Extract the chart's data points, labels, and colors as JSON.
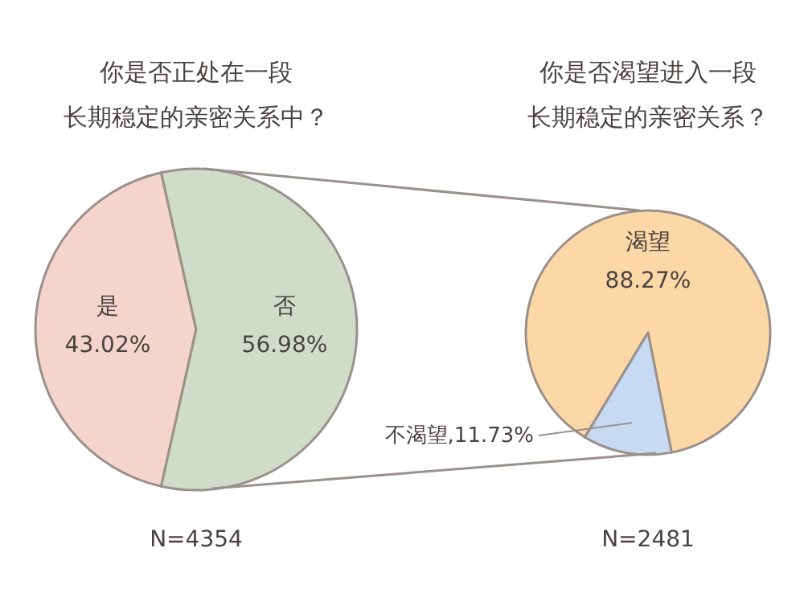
{
  "chart_data": [
    {
      "type": "pie",
      "title": "你是否正处在一段",
      "subtitle": "长期稳定的亲密关系中？",
      "categories": [
        "是",
        "否"
      ],
      "values": [
        43.02,
        56.98
      ],
      "value_labels": [
        "43.02%",
        "56.98%"
      ],
      "colors": [
        "#f5d4cd",
        "#cfdcc9"
      ],
      "annotations": [
        "N=4354"
      ]
    },
    {
      "type": "pie",
      "title": "你是否渴望进入一段",
      "subtitle": "长期稳定的亲密关系？",
      "categories": [
        "渴望",
        "不渴望"
      ],
      "values": [
        88.27,
        11.73
      ],
      "value_labels": [
        "88.27%",
        ",11.73%"
      ],
      "colors": [
        "#fbd8a5",
        "#c6dbf3"
      ],
      "annotations": [
        "N=2481"
      ]
    }
  ]
}
